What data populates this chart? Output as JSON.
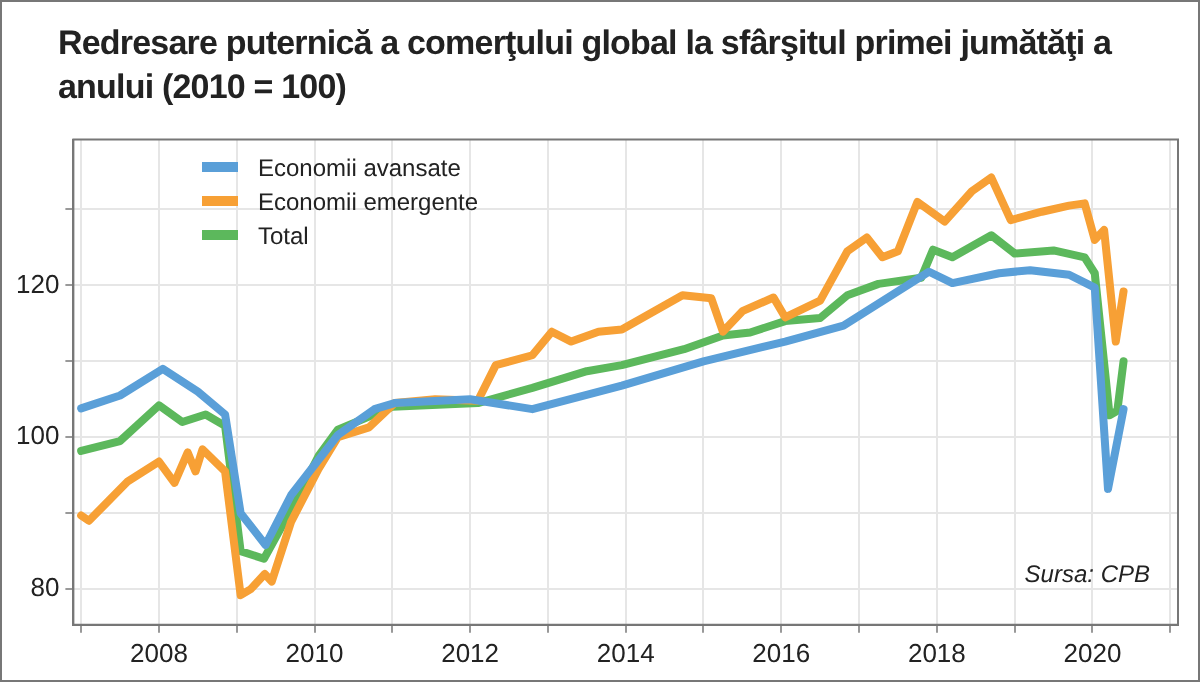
{
  "chart_data": {
    "type": "line",
    "title": "Redresare puternică a comerţului global la sfârşitul primei jumătăţi a anului (2010 = 100)",
    "annotations": [
      "Sursa: CPB"
    ],
    "legend": "top left",
    "grid": true,
    "marker": "none",
    "line_style": "solid",
    "xlim": [
      2006.9,
      2021.1
    ],
    "xticks": [
      {
        "value": 2007,
        "label": null
      },
      2008,
      {
        "value": 2009,
        "label": null
      },
      2010,
      {
        "value": 2011,
        "label": null
      },
      2012,
      {
        "value": 2013,
        "label": null
      },
      2014,
      {
        "value": 2015,
        "label": null
      },
      2016,
      {
        "value": 2017,
        "label": null
      },
      2018,
      {
        "value": 2019,
        "label": null
      },
      2020,
      {
        "value": 2021,
        "label": null
      }
    ],
    "ylim": [
      75.3,
      139.2
    ],
    "yticks": [
      80,
      {
        "value": 90,
        "label": null
      },
      100,
      {
        "value": 110,
        "label": null
      },
      120,
      {
        "value": 130,
        "label": null
      }
    ],
    "series": [
      {
        "name": "Economii avansate",
        "color": "#5a9fd8",
        "x": [
          2007.0,
          2007.5,
          2008.05,
          2008.5,
          2008.85,
          2009.05,
          2009.37,
          2009.7,
          2010.3,
          2010.77,
          2011.03,
          2012.0,
          2012.8,
          2013.95,
          2015.0,
          2016.05,
          2016.8,
          2017.9,
          2018.2,
          2018.8,
          2019.2,
          2019.7,
          2020.03,
          2020.2,
          2020.4
        ],
        "values": [
          103.8,
          105.5,
          109,
          106,
          103,
          90,
          85.8,
          92.4,
          100.3,
          103.7,
          104.5,
          105,
          103.7,
          106.8,
          110,
          112.6,
          114.7,
          121.8,
          120.3,
          121.6,
          122,
          121.4,
          119.7,
          93.2,
          103.7
        ]
      },
      {
        "name": "Economii emergente",
        "color": "#f7a035",
        "x": [
          2007.0,
          2007.1,
          2007.6,
          2008.0,
          2008.2,
          2008.37,
          2008.47,
          2008.56,
          2008.85,
          2009.05,
          2009.18,
          2009.36,
          2009.45,
          2009.7,
          2010.05,
          2010.3,
          2010.7,
          2011.03,
          2011.55,
          2012.1,
          2012.33,
          2012.8,
          2013.05,
          2013.3,
          2013.65,
          2013.95,
          2014.73,
          2015.1,
          2015.25,
          2015.5,
          2015.9,
          2016.05,
          2016.5,
          2016.85,
          2017.1,
          2017.3,
          2017.5,
          2017.75,
          2018.1,
          2018.45,
          2018.7,
          2018.95,
          2019.35,
          2019.7,
          2019.9,
          2020.03,
          2020.15,
          2020.3,
          2020.4
        ],
        "values": [
          89.7,
          89,
          94.2,
          96.8,
          94,
          98,
          95.5,
          98.4,
          95.5,
          79.2,
          80,
          82,
          81,
          88.9,
          95.8,
          100,
          101.3,
          104.5,
          105,
          104.8,
          109.5,
          110.8,
          113.9,
          112.6,
          113.9,
          114.2,
          118.7,
          118.3,
          113.9,
          116.6,
          118.4,
          115.8,
          118,
          124.5,
          126.3,
          123.7,
          124.5,
          131,
          128.4,
          132.4,
          134.2,
          128.6,
          129.7,
          130.5,
          130.8,
          126,
          127.3,
          112.6,
          119.2
        ]
      },
      {
        "name": "Total",
        "color": "#5cb85c",
        "x": [
          2007.0,
          2007.5,
          2008.0,
          2008.3,
          2008.6,
          2008.85,
          2009.05,
          2009.35,
          2009.7,
          2010.05,
          2010.3,
          2011.0,
          2012.1,
          2012.8,
          2013.5,
          2013.95,
          2014.75,
          2015.25,
          2015.6,
          2016.05,
          2016.5,
          2016.85,
          2017.25,
          2017.8,
          2017.95,
          2018.2,
          2018.7,
          2019.0,
          2019.5,
          2019.9,
          2020.03,
          2020.22,
          2020.32,
          2020.4
        ],
        "values": [
          98.2,
          99.5,
          104.2,
          102,
          103,
          101.5,
          85,
          84,
          90.5,
          97.5,
          101,
          104,
          104.5,
          106.5,
          108.7,
          109.5,
          111.6,
          113.4,
          113.8,
          115.3,
          115.7,
          118.7,
          120.2,
          121,
          124.7,
          123.7,
          126.6,
          124.2,
          124.6,
          123.7,
          121.6,
          102.9,
          103.5,
          110
        ]
      }
    ]
  }
}
